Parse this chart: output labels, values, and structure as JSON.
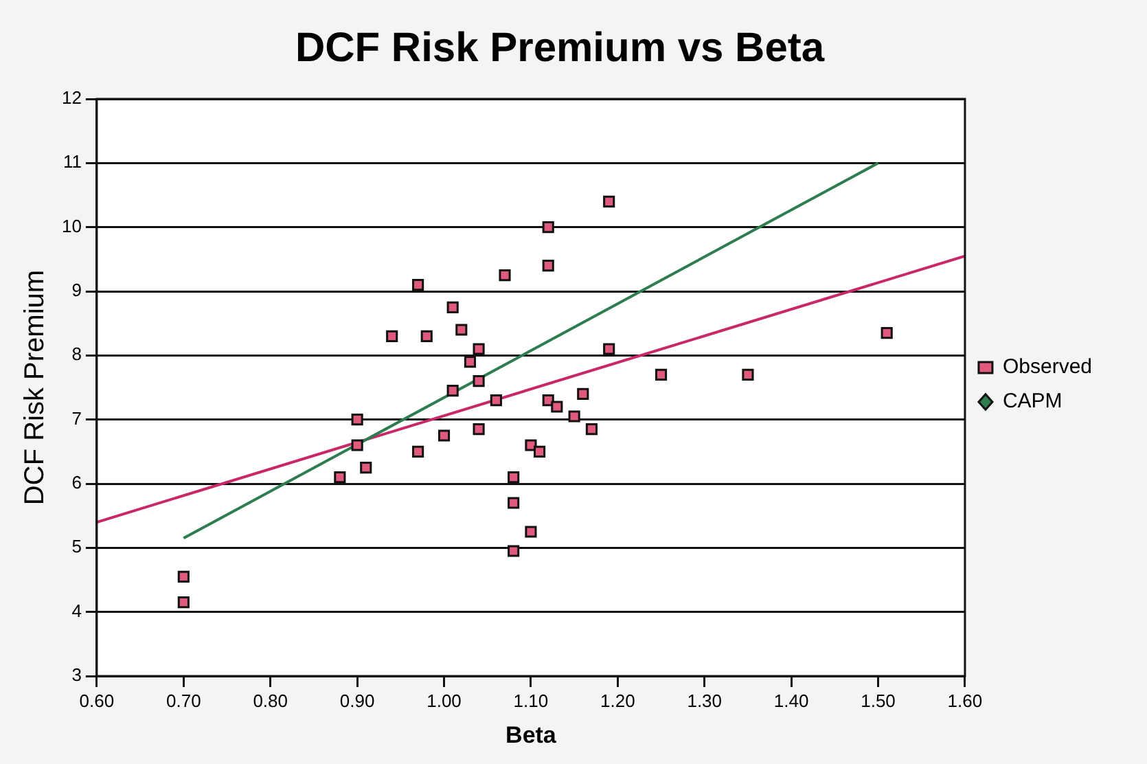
{
  "chart_data": {
    "type": "scatter",
    "title": "DCF Risk Premium vs Beta",
    "xlabel": "Beta",
    "ylabel": "DCF Risk Premium",
    "xlim": [
      0.6,
      1.6
    ],
    "xticks": [
      {
        "value": 0.6,
        "label": "0.60"
      },
      {
        "value": 0.7,
        "label": "0.70"
      },
      {
        "value": 0.8,
        "label": "0.80"
      },
      {
        "value": 0.9,
        "label": "0.90"
      },
      {
        "value": 1.0,
        "label": "1.00"
      },
      {
        "value": 1.1,
        "label": "1.10"
      },
      {
        "value": 1.2,
        "label": "1.20"
      },
      {
        "value": 1.3,
        "label": "1.30"
      },
      {
        "value": 1.4,
        "label": "1.40"
      },
      {
        "value": 1.5,
        "label": "1.50"
      },
      {
        "value": 1.6,
        "label": "1.60"
      }
    ],
    "ylim": [
      3,
      12
    ],
    "yticks": [
      3,
      4,
      5,
      6,
      7,
      8,
      9,
      10,
      11,
      12
    ],
    "grid": "y",
    "legend": "right",
    "series": [
      {
        "name": "Observed",
        "type": "scatter",
        "marker": "square",
        "color": "#e05a7e",
        "x": [
          1.19,
          1.12,
          1.12,
          1.07,
          0.97,
          1.01,
          0.94,
          0.98,
          1.02,
          1.04,
          1.03,
          1.19,
          1.25,
          1.04,
          1.01,
          1.06,
          1.12,
          1.13,
          1.15,
          1.16,
          1.17,
          0.9,
          0.9,
          1.0,
          1.04,
          0.97,
          0.91,
          0.88,
          1.1,
          1.11,
          1.08,
          1.08,
          1.1,
          1.08,
          0.7,
          0.7,
          1.35,
          1.51
        ],
        "values": [
          10.4,
          10.0,
          9.4,
          9.25,
          9.1,
          8.75,
          8.3,
          8.3,
          8.4,
          8.1,
          7.9,
          8.1,
          7.7,
          7.6,
          7.45,
          7.3,
          7.3,
          7.2,
          7.05,
          7.4,
          6.85,
          7.0,
          6.6,
          6.75,
          6.85,
          6.5,
          6.25,
          6.1,
          6.6,
          6.5,
          6.1,
          5.7,
          5.25,
          4.95,
          4.55,
          4.15,
          7.7,
          8.35
        ]
      },
      {
        "name": "CAPM",
        "type": "line",
        "marker": "none",
        "color": "#2e7d4f",
        "x": [
          0.7,
          1.5
        ],
        "values": [
          5.15,
          11.0
        ]
      },
      {
        "type": "line",
        "marker": "none",
        "color": "#c8286a",
        "x": [
          0.6,
          1.6
        ],
        "values": [
          5.4,
          9.55
        ]
      }
    ]
  }
}
